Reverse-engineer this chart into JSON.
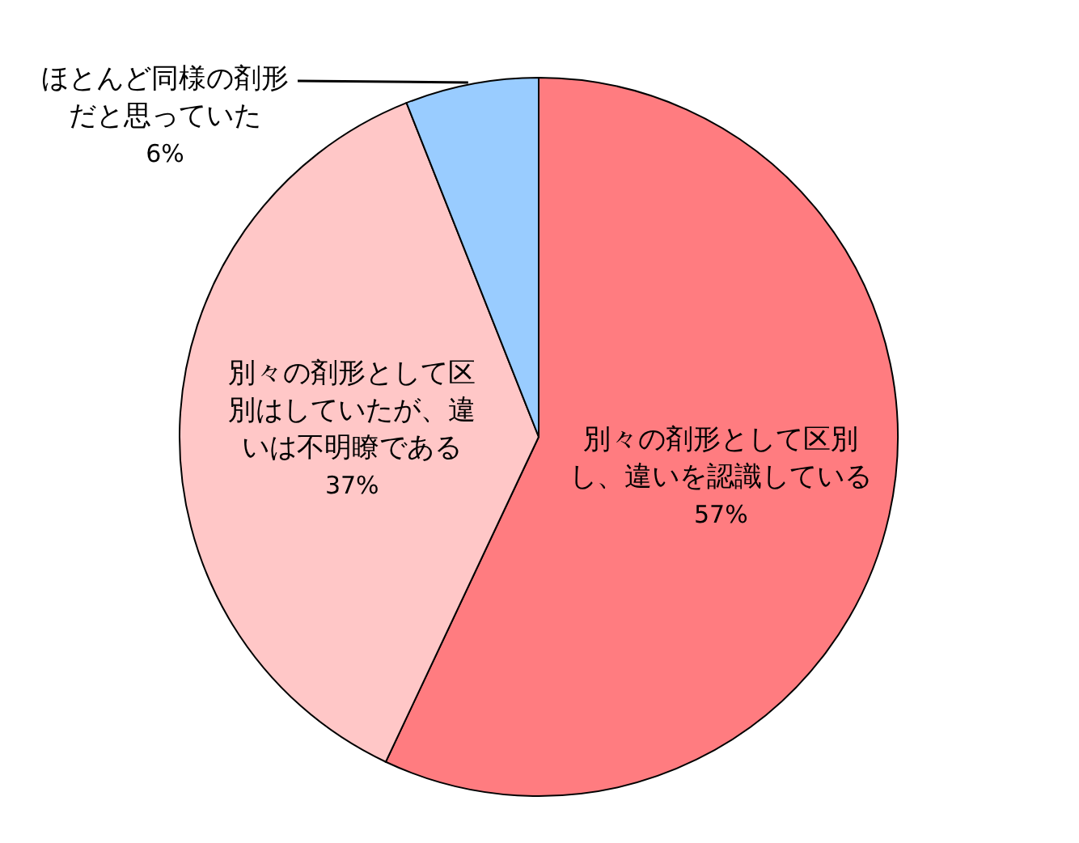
{
  "chart_data": {
    "type": "pie",
    "categories": [
      "別々の剤形として区別し、違いを認識している",
      "別々の剤形として区別はしていたが、違いは不明瞭である",
      "ほとんど同様の剤形だと思っていた"
    ],
    "values": [
      57,
      37,
      6
    ],
    "value_labels": [
      "57%",
      "37%",
      "6%"
    ],
    "colors": [
      "#ff7c80",
      "#ffc7c7",
      "#99ccff"
    ]
  }
}
